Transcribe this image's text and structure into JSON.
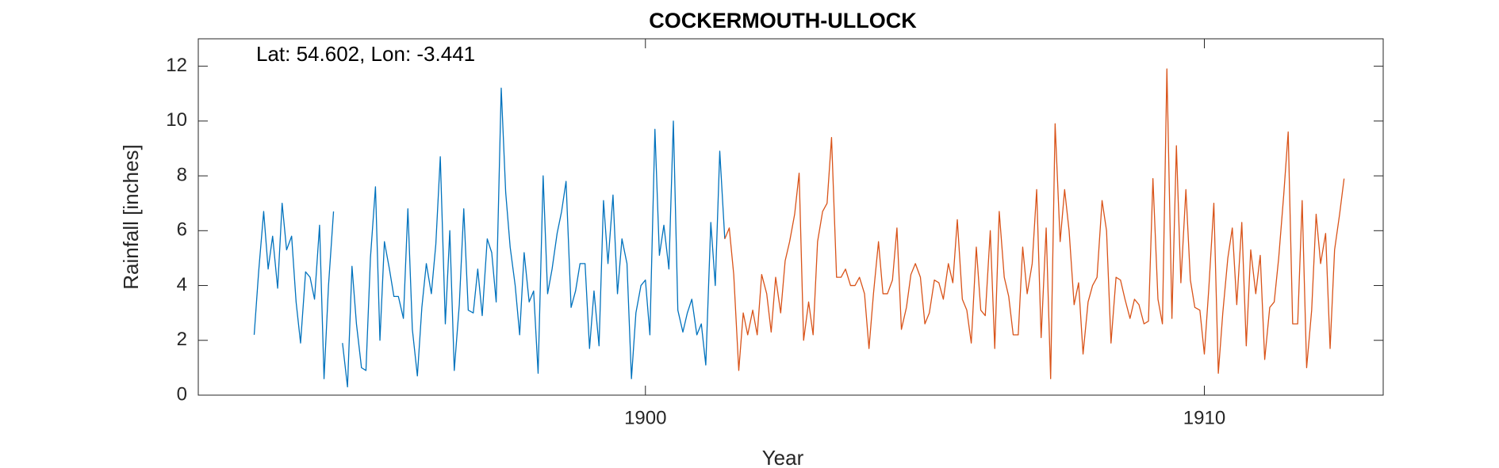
{
  "chart_data": {
    "type": "line",
    "title": "COCKERMOUTH-ULLOCK",
    "annotation": "Lat: 54.602, Lon: -3.441",
    "xlabel": "Year",
    "ylabel": "Rainfall [inches]",
    "xlim": [
      1892,
      1913.2
    ],
    "xticks": [
      1900,
      1910
    ],
    "ylim": [
      0,
      13
    ],
    "yticks": [
      0,
      2,
      4,
      6,
      8,
      10,
      12
    ],
    "series": [
      {
        "color": "#0072BD",
        "x": [
          1893,
          1893.08,
          1893.17,
          1893.25,
          1893.33,
          1893.42,
          1893.5,
          1893.58,
          1893.67,
          1893.75,
          1893.83,
          1893.92,
          1894,
          1894.08,
          1894.17,
          1894.25,
          1894.33,
          1894.42,
          1894.5,
          1894.58,
          1894.67,
          1894.75,
          1894.83,
          1894.92,
          1895,
          1895.08,
          1895.17,
          1895.25,
          1895.33,
          1895.42,
          1895.5,
          1895.58,
          1895.67,
          1895.75,
          1895.83,
          1895.92,
          1896,
          1896.08,
          1896.17,
          1896.25,
          1896.33,
          1896.42,
          1896.5,
          1896.58,
          1896.67,
          1896.75,
          1896.83,
          1896.92,
          1897,
          1897.08,
          1897.17,
          1897.25,
          1897.33,
          1897.42,
          1897.5,
          1897.58,
          1897.67,
          1897.75,
          1897.83,
          1897.92,
          1898,
          1898.08,
          1898.17,
          1898.25,
          1898.33,
          1898.42,
          1898.5,
          1898.58,
          1898.67,
          1898.75,
          1898.83,
          1898.92,
          1899,
          1899.08,
          1899.17,
          1899.25,
          1899.33,
          1899.42,
          1899.5,
          1899.58,
          1899.67,
          1899.75,
          1899.83,
          1899.92,
          1900,
          1900.08,
          1900.17,
          1900.25,
          1900.33,
          1900.42,
          1900.5,
          1900.58,
          1900.67,
          1900.75,
          1900.83,
          1900.92,
          1901,
          1901.08,
          1901.17,
          1901.25,
          1901.33,
          1901.42
        ],
        "values": [
          2.2,
          4.5,
          6.7,
          4.6,
          5.8,
          3.9,
          7.0,
          5.3,
          5.8,
          3.4,
          1.9,
          4.5,
          4.3,
          3.5,
          6.2,
          0.6,
          4.0,
          6.7,
          null,
          1.9,
          0.3,
          4.7,
          2.6,
          1.0,
          0.9,
          5.0,
          7.6,
          2.0,
          5.6,
          4.6,
          3.6,
          3.6,
          2.8,
          6.8,
          2.4,
          0.7,
          3.2,
          4.8,
          3.7,
          5.5,
          8.7,
          2.6,
          6.0,
          0.9,
          3.3,
          6.8,
          3.1,
          3.0,
          4.6,
          2.9,
          5.7,
          5.2,
          3.4,
          11.2,
          7.4,
          5.4,
          4.0,
          2.2,
          5.2,
          3.4,
          3.8,
          0.8,
          8.0,
          3.7,
          4.6,
          5.9,
          6.7,
          7.8,
          3.2,
          3.8,
          4.8,
          4.8,
          1.7,
          3.8,
          1.8,
          7.1,
          4.8,
          7.3,
          3.7,
          5.7,
          4.8,
          0.6,
          3.0,
          4.0,
          4.2,
          2.2,
          9.7,
          5.1,
          6.2,
          4.6,
          10.0,
          3.1,
          2.3,
          3.0,
          3.5,
          2.2,
          2.6,
          1.1,
          6.3,
          4.0,
          8.9,
          5.7
        ]
      },
      {
        "color": "#D95319",
        "x": [
          1901.42,
          1901.5,
          1901.58,
          1901.67,
          1901.75,
          1901.83,
          1901.92,
          1902,
          1902.08,
          1902.17,
          1902.25,
          1902.33,
          1902.42,
          1902.5,
          1902.58,
          1902.67,
          1902.75,
          1902.83,
          1902.92,
          1903,
          1903.08,
          1903.17,
          1903.25,
          1903.33,
          1903.42,
          1903.5,
          1903.58,
          1903.67,
          1903.75,
          1903.83,
          1903.92,
          1904,
          1904.08,
          1904.17,
          1904.25,
          1904.33,
          1904.42,
          1904.5,
          1904.58,
          1904.67,
          1904.75,
          1904.83,
          1904.92,
          1905,
          1905.08,
          1905.17,
          1905.25,
          1905.33,
          1905.42,
          1905.5,
          1905.58,
          1905.67,
          1905.75,
          1905.83,
          1905.92,
          1906,
          1906.08,
          1906.17,
          1906.25,
          1906.33,
          1906.42,
          1906.5,
          1906.58,
          1906.67,
          1906.75,
          1906.83,
          1906.92,
          1907,
          1907.08,
          1907.17,
          1907.25,
          1907.33,
          1907.42,
          1907.5,
          1907.58,
          1907.67,
          1907.75,
          1907.83,
          1907.92,
          1908,
          1908.08,
          1908.17,
          1908.25,
          1908.33,
          1908.42,
          1908.5,
          1908.58,
          1908.67,
          1908.75,
          1908.83,
          1908.92,
          1909,
          1909.08,
          1909.17,
          1909.25,
          1909.33,
          1909.42,
          1909.5,
          1909.58,
          1909.67,
          1909.75,
          1909.83,
          1909.92,
          1910,
          1910.08,
          1910.17,
          1910.25,
          1910.33,
          1910.42,
          1910.5,
          1910.58,
          1910.67,
          1910.75,
          1910.83,
          1910.92,
          1911,
          1911.08,
          1911.17,
          1911.25,
          1911.33,
          1911.42,
          1911.5,
          1911.58,
          1911.67,
          1911.75,
          1911.83,
          1911.92,
          1912,
          1912.08,
          1912.17,
          1912.25,
          1912.33,
          1912.42,
          1912.5
        ],
        "values": [
          5.7,
          6.1,
          4.4,
          0.9,
          3.0,
          2.2,
          3.1,
          2.2,
          4.4,
          3.7,
          2.3,
          4.3,
          3.0,
          4.9,
          5.6,
          6.6,
          8.1,
          2.0,
          3.4,
          2.2,
          5.6,
          6.7,
          7.0,
          9.4,
          4.3,
          4.3,
          4.6,
          4.0,
          4.0,
          4.3,
          3.7,
          1.7,
          3.7,
          5.6,
          3.7,
          3.7,
          4.2,
          6.1,
          2.4,
          3.2,
          4.4,
          4.8,
          4.3,
          2.6,
          3.0,
          4.2,
          4.1,
          3.5,
          4.8,
          4.1,
          6.4,
          3.5,
          3.1,
          1.9,
          5.4,
          3.1,
          2.9,
          6.0,
          1.7,
          6.7,
          4.3,
          3.6,
          2.2,
          2.2,
          5.4,
          3.7,
          4.8,
          7.5,
          2.1,
          6.1,
          0.6,
          9.9,
          5.6,
          7.5,
          6.0,
          3.3,
          4.1,
          1.5,
          3.4,
          4.0,
          4.3,
          7.1,
          6.0,
          1.9,
          4.3,
          4.2,
          3.5,
          2.8,
          3.5,
          3.3,
          2.6,
          2.7,
          7.9,
          3.5,
          2.6,
          11.9,
          2.8,
          9.1,
          4.1,
          7.5,
          4.2,
          3.2,
          3.1,
          1.5,
          3.9,
          7.0,
          0.8,
          3.0,
          5.0,
          6.1,
          3.3,
          6.3,
          1.8,
          5.3,
          3.7,
          5.1,
          1.3,
          3.2,
          3.4,
          5.0,
          7.3,
          9.6,
          2.6,
          2.6,
          7.1,
          1.0,
          3.1,
          6.6,
          4.8,
          5.9,
          1.7,
          5.3,
          6.6,
          7.9
        ]
      }
    ]
  }
}
